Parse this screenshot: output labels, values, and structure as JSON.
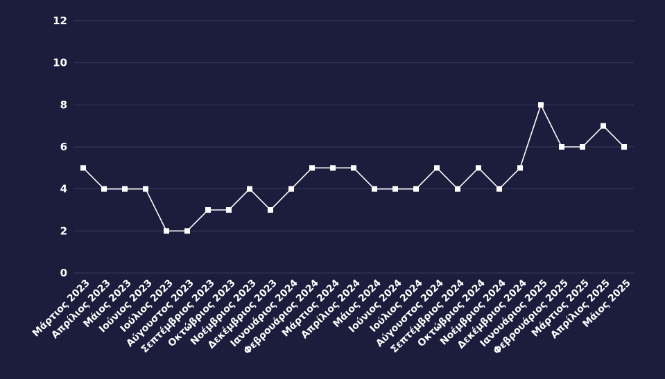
{
  "chart_data": {
    "type": "line",
    "title": "",
    "xlabel": "",
    "ylabel": "",
    "ylim": [
      0,
      12
    ],
    "yticks": [
      0,
      2,
      4,
      6,
      8,
      10,
      12
    ],
    "grid": true,
    "legend": "none",
    "colors": {
      "background": "#1c1c3c",
      "grid": "#3a3a5c",
      "line": "#ffffff",
      "text": "#ffffff"
    },
    "categories": [
      "Μάρτιος 2023",
      "Απρίλιος 2023",
      "Μάιος 2023",
      "Ιούνιος 2023",
      "Ιούλιος 2023",
      "Αύγουστος 2023",
      "Σεπτέμβριος 2023",
      "Οκτώβριος 2023",
      "Νοέμβριος 2023",
      "Δεκέμβριος 2023",
      "Ιανουάριος 2024",
      "Φεβρουάριος 2024",
      "Μάρτιος 2024",
      "Απρίλιος 2024",
      "Μάιος 2024",
      "Ιούνιος 2024",
      "Ιούλιος 2024",
      "Αύγουστος 2024",
      "Σεπτέμβριος 2024",
      "Οκτώβριος 2024",
      "Νοέμβριος 2024",
      "Δεκέμβριος 2024",
      "Ιανουάριος 2025",
      "Φεβρουάριος 2025",
      "Μάρτιος 2025",
      "Απρίλιος 2025",
      "Μάιος 2025"
    ],
    "series": [
      {
        "values": [
          5,
          4,
          4,
          4,
          2,
          2,
          3,
          3,
          4,
          3,
          4,
          5,
          5,
          5,
          4,
          4,
          4,
          5,
          4,
          5,
          4,
          5,
          8,
          6,
          6,
          7,
          6
        ]
      }
    ]
  }
}
